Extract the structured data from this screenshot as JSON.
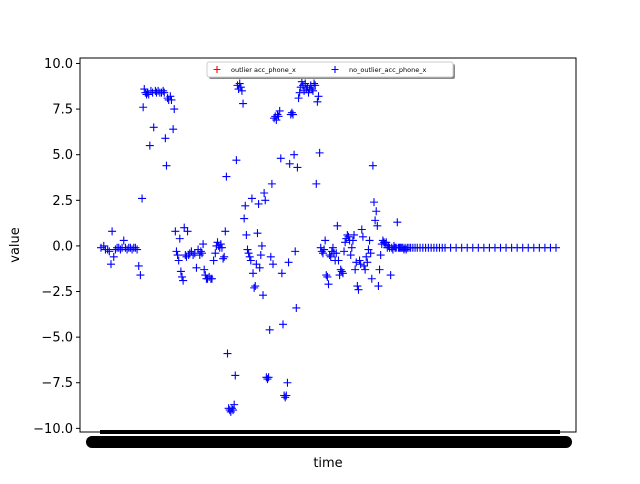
{
  "chart_data": {
    "type": "scatter",
    "title": "",
    "xlabel": "time",
    "ylabel": "value",
    "ylim": [
      -10.2,
      10.3
    ],
    "yticks": [
      10.0,
      7.5,
      5.0,
      2.5,
      0.0,
      -2.5,
      -5.0,
      -7.5,
      -10.0
    ],
    "ytick_labels": [
      "10.0",
      "7.5",
      "5.0",
      "2.5",
      "0.0",
      "−2.5",
      "−5.0",
      "−7.5",
      "−10.0"
    ],
    "xtick_labels_note": "dense overlapping timestamp labels rendered as solid black band",
    "grid": false,
    "legend": {
      "placement": "top-center",
      "columns": 2,
      "entries": [
        {
          "label": "outlier acc_phone_x",
          "marker": "+",
          "color": "#ff0000"
        },
        {
          "label": "no_outlier_acc_phone_x",
          "marker": "+",
          "color": "#0000ff"
        }
      ]
    },
    "series": [
      {
        "name": "outlier acc_phone_x",
        "color": "#ff0000",
        "marker": "+",
        "points": []
      },
      {
        "name": "no_outlier_acc_phone_x",
        "color": "#0000ff",
        "marker": "+",
        "x_range": [
          0,
          1000
        ],
        "points": [
          [
            0,
            -0.1
          ],
          [
            5,
            0.0
          ],
          [
            8,
            -0.2
          ],
          [
            12,
            -0.2
          ],
          [
            15,
            -0.3
          ],
          [
            18,
            -1.0
          ],
          [
            20,
            0.8
          ],
          [
            23,
            -0.6
          ],
          [
            26,
            -0.2
          ],
          [
            29,
            -0.1
          ],
          [
            32,
            -0.1
          ],
          [
            35,
            -0.2
          ],
          [
            38,
            -0.1
          ],
          [
            41,
            0.3
          ],
          [
            44,
            -0.1
          ],
          [
            47,
            -0.2
          ],
          [
            50,
            -0.1
          ],
          [
            53,
            -0.1
          ],
          [
            56,
            -0.2
          ],
          [
            59,
            -0.1
          ],
          [
            62,
            -0.1
          ],
          [
            65,
            -0.2
          ],
          [
            68,
            -1.1
          ],
          [
            71,
            -1.6
          ],
          [
            74,
            2.6
          ],
          [
            76,
            7.6
          ],
          [
            78,
            8.6
          ],
          [
            80,
            8.4
          ],
          [
            82,
            8.3
          ],
          [
            84,
            8.4
          ],
          [
            86,
            8.3
          ],
          [
            88,
            5.5
          ],
          [
            90,
            8.5
          ],
          [
            93,
            8.4
          ],
          [
            95,
            6.5
          ],
          [
            98,
            8.5
          ],
          [
            100,
            8.4
          ],
          [
            103,
            8.5
          ],
          [
            106,
            8.4
          ],
          [
            109,
            8.4
          ],
          [
            112,
            8.5
          ],
          [
            114,
            8.4
          ],
          [
            116,
            5.9
          ],
          [
            118,
            4.4
          ],
          [
            120,
            8.1
          ],
          [
            122,
            8.0
          ],
          [
            125,
            8.2
          ],
          [
            127,
            8.0
          ],
          [
            130,
            6.4
          ],
          [
            132,
            7.5
          ],
          [
            134,
            0.8
          ],
          [
            136,
            -0.3
          ],
          [
            138,
            -0.5
          ],
          [
            140,
            -0.8
          ],
          [
            142,
            0.4
          ],
          [
            144,
            -1.4
          ],
          [
            146,
            -1.7
          ],
          [
            148,
            -1.9
          ],
          [
            150,
            1.0
          ],
          [
            152,
            -0.5
          ],
          [
            154,
            -0.6
          ],
          [
            156,
            0.8
          ],
          [
            158,
            -0.5
          ],
          [
            160,
            -0.4
          ],
          [
            163,
            -0.3
          ],
          [
            166,
            -0.5
          ],
          [
            169,
            -0.4
          ],
          [
            172,
            -1.2
          ],
          [
            175,
            -0.2
          ],
          [
            178,
            -0.5
          ],
          [
            180,
            -0.3
          ],
          [
            182,
            -0.4
          ],
          [
            184,
            0.1
          ],
          [
            186,
            -1.3
          ],
          [
            188,
            -1.6
          ],
          [
            190,
            -1.8
          ],
          [
            192,
            -1.8
          ],
          [
            195,
            -1.7
          ],
          [
            198,
            -1.8
          ],
          [
            200,
            -1.8
          ],
          [
            203,
            -0.8
          ],
          [
            206,
            -0.4
          ],
          [
            208,
            0.0
          ],
          [
            210,
            0.2
          ],
          [
            212,
            0.0
          ],
          [
            214,
            -0.1
          ],
          [
            216,
            0.1
          ],
          [
            218,
            -0.1
          ],
          [
            220,
            -0.7
          ],
          [
            222,
            -0.6
          ],
          [
            224,
            0.8
          ],
          [
            226,
            3.8
          ],
          [
            228,
            -5.9
          ],
          [
            230,
            -8.9
          ],
          [
            232,
            -9.0
          ],
          [
            234,
            -9.1
          ],
          [
            236,
            -8.9
          ],
          [
            238,
            -9.0
          ],
          [
            240,
            -8.7
          ],
          [
            242,
            -7.1
          ],
          [
            244,
            4.7
          ],
          [
            246,
            8.8
          ],
          [
            248,
            8.6
          ],
          [
            250,
            8.9
          ],
          [
            252,
            8.7
          ],
          [
            254,
            8.5
          ],
          [
            256,
            7.8
          ],
          [
            258,
            1.5
          ],
          [
            260,
            2.2
          ],
          [
            262,
            0.6
          ],
          [
            264,
            -0.2
          ],
          [
            266,
            -0.4
          ],
          [
            268,
            -0.6
          ],
          [
            270,
            -0.8
          ],
          [
            272,
            2.6
          ],
          [
            274,
            -1.5
          ],
          [
            276,
            -2.3
          ],
          [
            278,
            -2.2
          ],
          [
            280,
            -1.0
          ],
          [
            282,
            0.7
          ],
          [
            284,
            2.3
          ],
          [
            286,
            -1.2
          ],
          [
            288,
            -0.5
          ],
          [
            290,
            0.0
          ],
          [
            292,
            -2.7
          ],
          [
            294,
            2.9
          ],
          [
            296,
            2.5
          ],
          [
            298,
            -7.2
          ],
          [
            300,
            -7.3
          ],
          [
            302,
            -7.2
          ],
          [
            304,
            -4.6
          ],
          [
            306,
            -0.6
          ],
          [
            308,
            3.4
          ],
          [
            310,
            -1.0
          ],
          [
            312,
            7.0
          ],
          [
            314,
            7.1
          ],
          [
            316,
            6.9
          ],
          [
            318,
            7.2
          ],
          [
            320,
            7.1
          ],
          [
            322,
            7.4
          ],
          [
            324,
            4.8
          ],
          [
            326,
            -1.5
          ],
          [
            328,
            -4.3
          ],
          [
            330,
            -8.2
          ],
          [
            332,
            -8.3
          ],
          [
            334,
            -8.2
          ],
          [
            336,
            -7.5
          ],
          [
            338,
            -0.9
          ],
          [
            340,
            4.5
          ],
          [
            342,
            7.2
          ],
          [
            344,
            7.3
          ],
          [
            346,
            7.2
          ],
          [
            348,
            5.0
          ],
          [
            350,
            -0.3
          ],
          [
            352,
            -3.4
          ],
          [
            354,
            4.3
          ],
          [
            356,
            8.1
          ],
          [
            358,
            8.4
          ],
          [
            360,
            8.7
          ],
          [
            362,
            9.0
          ],
          [
            364,
            8.8
          ],
          [
            366,
            8.5
          ],
          [
            368,
            8.9
          ],
          [
            370,
            8.6
          ],
          [
            372,
            8.7
          ],
          [
            374,
            8.4
          ],
          [
            376,
            8.6
          ],
          [
            378,
            8.8
          ],
          [
            380,
            8.6
          ],
          [
            382,
            8.5
          ],
          [
            384,
            8.9
          ],
          [
            386,
            8.8
          ],
          [
            388,
            3.4
          ],
          [
            390,
            7.9
          ],
          [
            392,
            8.2
          ],
          [
            394,
            5.1
          ],
          [
            396,
            -0.1
          ],
          [
            398,
            -0.3
          ],
          [
            400,
            -0.4
          ],
          [
            402,
            -0.2
          ],
          [
            404,
            0.3
          ],
          [
            406,
            -1.6
          ],
          [
            408,
            -1.7
          ],
          [
            410,
            -2.1
          ],
          [
            412,
            -0.5
          ],
          [
            414,
            -0.6
          ],
          [
            416,
            -0.3
          ],
          [
            418,
            -0.1
          ],
          [
            420,
            -0.4
          ],
          [
            422,
            -0.8
          ],
          [
            424,
            -0.4
          ],
          [
            426,
            1.1
          ],
          [
            428,
            -0.8
          ],
          [
            430,
            -1.6
          ],
          [
            432,
            -1.3
          ],
          [
            434,
            -1.4
          ],
          [
            436,
            -1.5
          ],
          [
            438,
            -0.3
          ],
          [
            440,
            0.2
          ],
          [
            442,
            0.4
          ],
          [
            444,
            0.6
          ],
          [
            446,
            0.5
          ],
          [
            448,
            0.3
          ],
          [
            450,
            -0.5
          ],
          [
            452,
            -0.1
          ],
          [
            454,
            0.3
          ],
          [
            456,
            0.6
          ],
          [
            458,
            -1.3
          ],
          [
            460,
            -0.9
          ],
          [
            462,
            -2.2
          ],
          [
            464,
            -2.4
          ],
          [
            466,
            -0.8
          ],
          [
            468,
            -1.0
          ],
          [
            470,
            0.9
          ],
          [
            472,
            0.5
          ],
          [
            474,
            -1.1
          ],
          [
            476,
            -1.3
          ],
          [
            478,
            -0.6
          ],
          [
            480,
            -0.9
          ],
          [
            482,
            -0.2
          ],
          [
            484,
            0.3
          ],
          [
            486,
            -0.4
          ],
          [
            488,
            -1.8
          ],
          [
            490,
            4.4
          ],
          [
            492,
            2.4
          ],
          [
            494,
            1.4
          ],
          [
            496,
            1.9
          ],
          [
            498,
            1.1
          ],
          [
            500,
            -2.2
          ],
          [
            502,
            -1.3
          ],
          [
            504,
            -0.5
          ],
          [
            506,
            0.1
          ],
          [
            508,
            0.3
          ],
          [
            510,
            0.2
          ],
          [
            512,
            0.1
          ],
          [
            514,
            0.2
          ],
          [
            516,
            -0.1
          ],
          [
            518,
            0.0
          ],
          [
            520,
            -0.1
          ],
          [
            522,
            -1.6
          ],
          [
            524,
            -0.1
          ],
          [
            526,
            -0.2
          ],
          [
            528,
            0.0
          ],
          [
            530,
            -0.1
          ],
          [
            532,
            -0.1
          ],
          [
            534,
            1.3
          ],
          [
            536,
            -0.1
          ],
          [
            538,
            -0.1
          ],
          [
            540,
            -0.1
          ],
          [
            542,
            -0.1
          ],
          [
            544,
            -0.1
          ],
          [
            546,
            -0.2
          ],
          [
            548,
            -0.1
          ],
          [
            550,
            -0.2
          ],
          [
            552,
            -0.1
          ],
          [
            555,
            -0.1
          ],
          [
            558,
            -0.1
          ],
          [
            562,
            -0.1
          ],
          [
            566,
            -0.1
          ],
          [
            570,
            -0.1
          ],
          [
            575,
            -0.1
          ],
          [
            580,
            -0.1
          ],
          [
            585,
            -0.1
          ],
          [
            590,
            -0.1
          ],
          [
            595,
            -0.1
          ],
          [
            600,
            -0.1
          ],
          [
            605,
            -0.1
          ],
          [
            610,
            -0.1
          ],
          [
            615,
            -0.1
          ],
          [
            620,
            -0.1
          ],
          [
            630,
            -0.1
          ],
          [
            640,
            -0.1
          ],
          [
            650,
            -0.1
          ],
          [
            660,
            -0.1
          ],
          [
            670,
            -0.1
          ],
          [
            680,
            -0.1
          ],
          [
            690,
            -0.1
          ],
          [
            700,
            -0.1
          ],
          [
            710,
            -0.1
          ],
          [
            720,
            -0.1
          ],
          [
            730,
            -0.1
          ],
          [
            740,
            -0.1
          ],
          [
            750,
            -0.1
          ],
          [
            760,
            -0.1
          ],
          [
            770,
            -0.1
          ],
          [
            780,
            -0.1
          ],
          [
            790,
            -0.1
          ],
          [
            800,
            -0.1
          ],
          [
            810,
            -0.1
          ],
          [
            820,
            -0.1
          ]
        ]
      }
    ]
  }
}
